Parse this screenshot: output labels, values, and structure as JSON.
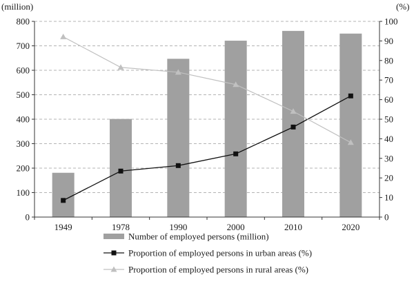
{
  "chart_data": {
    "type": "bar",
    "categories": [
      "1949",
      "1978",
      "1990",
      "2000",
      "2010",
      "2020"
    ],
    "y_left": {
      "unit_label": "(million)",
      "ylim": [
        0,
        800
      ],
      "ticks": [
        0,
        100,
        200,
        300,
        400,
        500,
        600,
        700,
        800
      ]
    },
    "y_right": {
      "unit_label": "(%)",
      "ylim": [
        0,
        100
      ],
      "ticks": [
        0,
        10,
        20,
        30,
        40,
        50,
        60,
        70,
        80,
        90,
        100
      ]
    },
    "grid": "horizontal dashed",
    "legend_position": "bottom",
    "series": [
      {
        "name": "Number of employed persons (million)",
        "type": "bar",
        "axis": "left",
        "color": "#a0a0a0",
        "values": [
          181,
          401,
          647,
          721,
          761,
          750
        ]
      },
      {
        "name": "Proportion of employed persons in urban areas (%)",
        "type": "line",
        "axis": "right",
        "color": "#111111",
        "marker": "square",
        "values": [
          8.5,
          23.5,
          26.3,
          32.3,
          46.0,
          61.9
        ]
      },
      {
        "name": "Proportion of employed persons in rural areas (%)",
        "type": "line",
        "axis": "right",
        "color": "#c0c0c0",
        "marker": "triangle",
        "values": [
          92.1,
          76.5,
          74.0,
          67.7,
          54.0,
          38.1
        ]
      }
    ]
  }
}
